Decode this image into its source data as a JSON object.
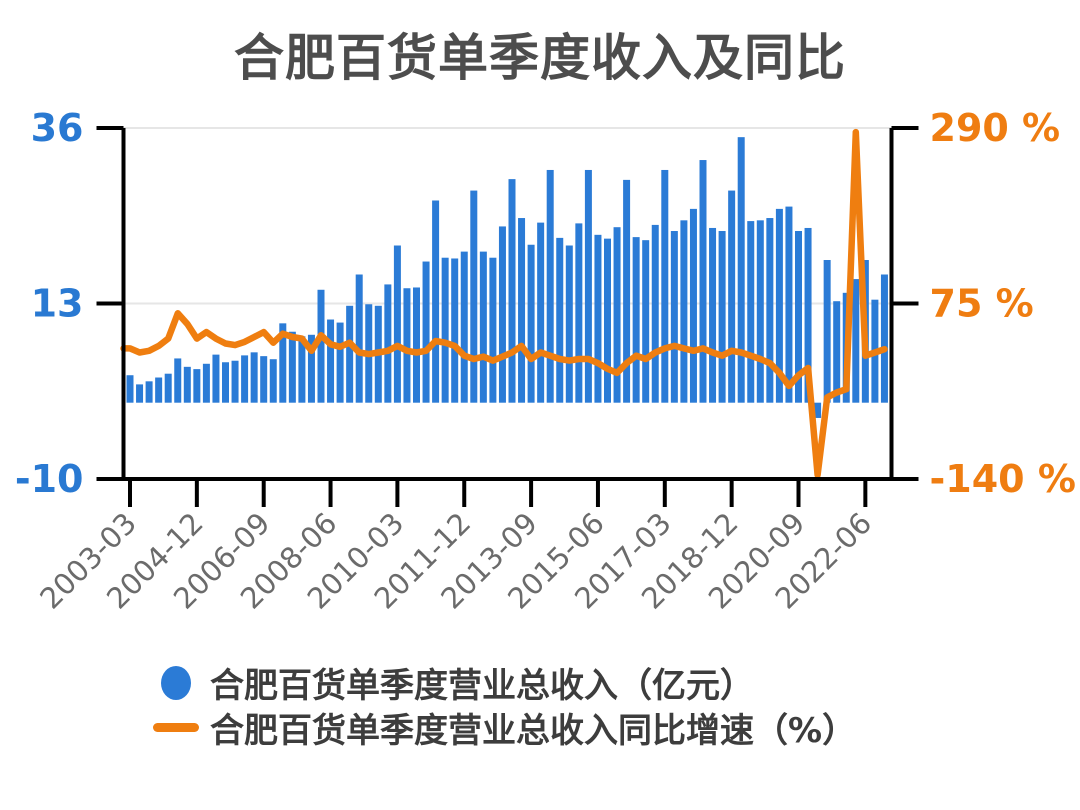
{
  "title": "合肥百货单季度收入及同比",
  "colors": {
    "bar": "#2b7bd6",
    "line": "#ef7e10",
    "title": "#4d4d4d",
    "left_labels": "#2979d2",
    "right_labels": "#ef7d11",
    "x_labels": "#6b6b6b",
    "grid": "#e6e6e6",
    "axis": "#000000",
    "legend_text": "#3d3d3d"
  },
  "legend": [
    {
      "label": "合肥百货单季度营业总收入（亿元）",
      "marker": "circle",
      "color": "#2b7bd6"
    },
    {
      "label": "合肥百货单季度营业总收入同比增速（%）",
      "marker": "line",
      "color": "#ef7e10"
    }
  ],
  "chart_data": {
    "type": "bar",
    "title": "合肥百货单季度收入及同比",
    "x": [
      "2003-03",
      "2003-06",
      "2003-09",
      "2003-12",
      "2004-03",
      "2004-06",
      "2004-09",
      "2004-12",
      "2005-03",
      "2005-06",
      "2005-09",
      "2005-12",
      "2006-03",
      "2006-06",
      "2006-09",
      "2006-12",
      "2007-03",
      "2007-06",
      "2007-09",
      "2007-12",
      "2008-03",
      "2008-06",
      "2008-09",
      "2008-12",
      "2009-03",
      "2009-06",
      "2009-09",
      "2009-12",
      "2010-03",
      "2010-06",
      "2010-09",
      "2010-12",
      "2011-03",
      "2011-06",
      "2011-09",
      "2011-12",
      "2012-03",
      "2012-06",
      "2012-09",
      "2012-12",
      "2013-03",
      "2013-06",
      "2013-09",
      "2013-12",
      "2014-03",
      "2014-06",
      "2014-09",
      "2014-12",
      "2015-03",
      "2015-06",
      "2015-09",
      "2015-12",
      "2016-03",
      "2016-06",
      "2016-09",
      "2016-12",
      "2017-03",
      "2017-06",
      "2017-09",
      "2017-12",
      "2018-03",
      "2018-06",
      "2018-09",
      "2018-12",
      "2019-03",
      "2019-06",
      "2019-09",
      "2019-12",
      "2020-03",
      "2020-06",
      "2020-09",
      "2020-12",
      "2021-03",
      "2021-06",
      "2021-09",
      "2021-12",
      "2022-03",
      "2022-06",
      "2022-09",
      "2022-12"
    ],
    "series": [
      {
        "name": "合肥百货单季度营业总收入（亿元）",
        "type": "bar",
        "yaxis": "left",
        "values": [
          3.6,
          2.4,
          2.8,
          3.3,
          3.8,
          5.8,
          4.7,
          4.4,
          5.1,
          6.3,
          5.3,
          5.5,
          6.2,
          6.6,
          6.1,
          5.7,
          10.4,
          9.3,
          8.7,
          8.9,
          14.8,
          10.9,
          10.5,
          12.7,
          16.8,
          12.9,
          12.7,
          15.5,
          20.6,
          15.0,
          15.1,
          18.5,
          26.5,
          19.0,
          18.9,
          19.8,
          27.8,
          19.8,
          19.0,
          23.1,
          29.3,
          24.2,
          20.7,
          23.6,
          30.5,
          21.6,
          20.6,
          23.5,
          30.5,
          22.0,
          21.5,
          23.0,
          29.2,
          21.7,
          21.3,
          23.3,
          30.5,
          22.5,
          23.9,
          25.4,
          31.8,
          22.9,
          22.5,
          27.8,
          34.8,
          23.8,
          23.9,
          24.2,
          25.4,
          25.7,
          22.5,
          22.9,
          -2.0,
          18.7,
          13.3,
          14.4,
          16.2,
          18.7,
          13.5,
          16.8
        ]
      },
      {
        "name": "合肥百货单季度营业总收入同比增速（%）",
        "type": "line",
        "yaxis": "right",
        "values": [
          20,
          15,
          17,
          23,
          32,
          63,
          50,
          32,
          40,
          32,
          26,
          24,
          28,
          34,
          40,
          27,
          38,
          34,
          32,
          17,
          36,
          25,
          22,
          27,
          15,
          13,
          15,
          17,
          23,
          17,
          15,
          17,
          29,
          27,
          23,
          11,
          7,
          10,
          5,
          10,
          15,
          23,
          7,
          15,
          11,
          7,
          5,
          7,
          7,
          2,
          -5,
          -10,
          2,
          11,
          7,
          15,
          20,
          23,
          20,
          17,
          20,
          15,
          11,
          17,
          15,
          11,
          7,
          2,
          -10,
          -26,
          -13,
          -4,
          -135,
          -40,
          -34,
          -30,
          285,
          11,
          15,
          19
        ]
      }
    ],
    "left_axis": {
      "ticks": [
        36,
        13,
        -10
      ],
      "tick_labels": [
        "36",
        "13",
        "-10"
      ],
      "range": [
        -10,
        36
      ]
    },
    "right_axis": {
      "ticks": [
        290,
        75,
        -140
      ],
      "tick_labels": [
        "290 %",
        "75 %",
        "-140 %"
      ],
      "range": [
        -140,
        290
      ]
    },
    "x_tick_labels": [
      "2003-03",
      "2004-12",
      "2006-09",
      "2008-06",
      "2010-03",
      "2011-12",
      "2013-09",
      "2015-06",
      "2017-03",
      "2018-12",
      "2020-09",
      "2022-06"
    ],
    "x_tick_every": 7,
    "grid": "horizontal",
    "legend_position": "bottom-left"
  }
}
